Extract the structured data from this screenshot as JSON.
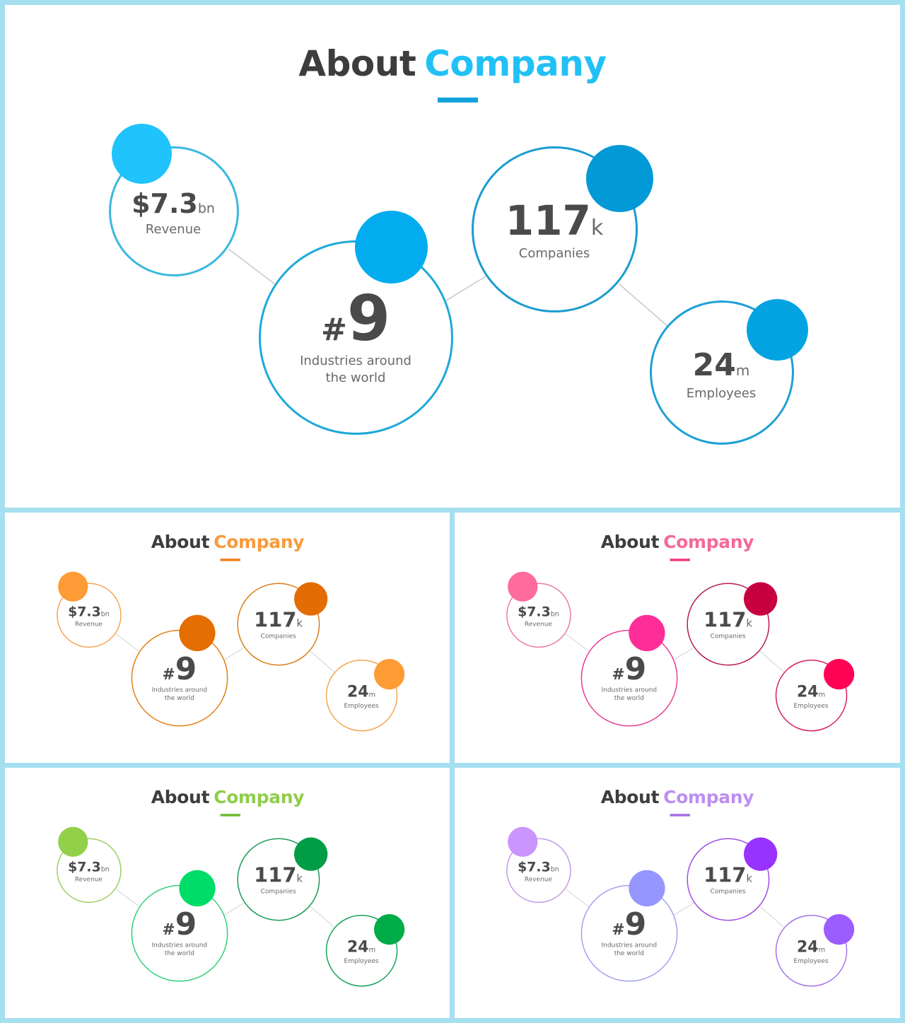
{
  "title": {
    "prefix": "About",
    "highlight": "Company"
  },
  "stats": {
    "revenue": {
      "value": "$7.3",
      "unit": "bn",
      "label": "Revenue"
    },
    "industries": {
      "prefix": "#",
      "value": "9",
      "label_line1": "Industries around",
      "label_line2": "the world"
    },
    "companies": {
      "value": "117",
      "unit": "k",
      "label": "Companies"
    },
    "employees": {
      "value": "24",
      "unit": "m",
      "label": "Employees"
    }
  },
  "themes": [
    {
      "name": "blue",
      "title_accent": "#21c1f5",
      "underline": "#12a2dc",
      "rev_dot": "#20c3fb",
      "rev_ring": "#3ab8e0",
      "ind_dot": "#02acee",
      "ind_ring": "#1ea9d8",
      "com_dot": "#0199d6",
      "com_ring": "#1a9cd0",
      "emp_dot": "#03a3e2",
      "emp_ring": "#1ea0d6"
    },
    {
      "name": "orange",
      "title_accent": "#f99a3a",
      "underline": "#f07e1a",
      "rev_dot": "#fd9b37",
      "rev_ring": "#f4a655",
      "ind_dot": "#e56d02",
      "ind_ring": "#e07e14",
      "com_dot": "#e46c05",
      "com_ring": "#db7d1a",
      "emp_dot": "#fd9b34",
      "emp_ring": "#f4a552"
    },
    {
      "name": "pink",
      "title_accent": "#f5699a",
      "underline": "#ef3a80",
      "rev_dot": "#fe6b9c",
      "rev_ring": "#ec79a4",
      "ind_dot": "#ff2d98",
      "ind_ring": "#e63b92",
      "com_dot": "#c70140",
      "com_ring": "#b71a4a",
      "emp_dot": "#ff0355",
      "emp_ring": "#d81f5c"
    },
    {
      "name": "green",
      "title_accent": "#8fce4a",
      "underline": "#6cbb2e",
      "rev_dot": "#93d049",
      "rev_ring": "#98cf60",
      "ind_dot": "#00dc68",
      "ind_ring": "#2fcf78",
      "com_dot": "#019d45",
      "com_ring": "#1a9a56",
      "emp_dot": "#00ac48",
      "emp_ring": "#16a35a"
    },
    {
      "name": "purple",
      "title_accent": "#bd8ff0",
      "underline": "#a56de8",
      "rev_dot": "#cb95fe",
      "rev_ring": "#c29aea",
      "ind_dot": "#9696fe",
      "ind_ring": "#a0a0f0",
      "com_dot": "#9832fe",
      "com_ring": "#a14de2",
      "emp_dot": "#9c5dfe",
      "emp_ring": "#a374ec"
    }
  ]
}
